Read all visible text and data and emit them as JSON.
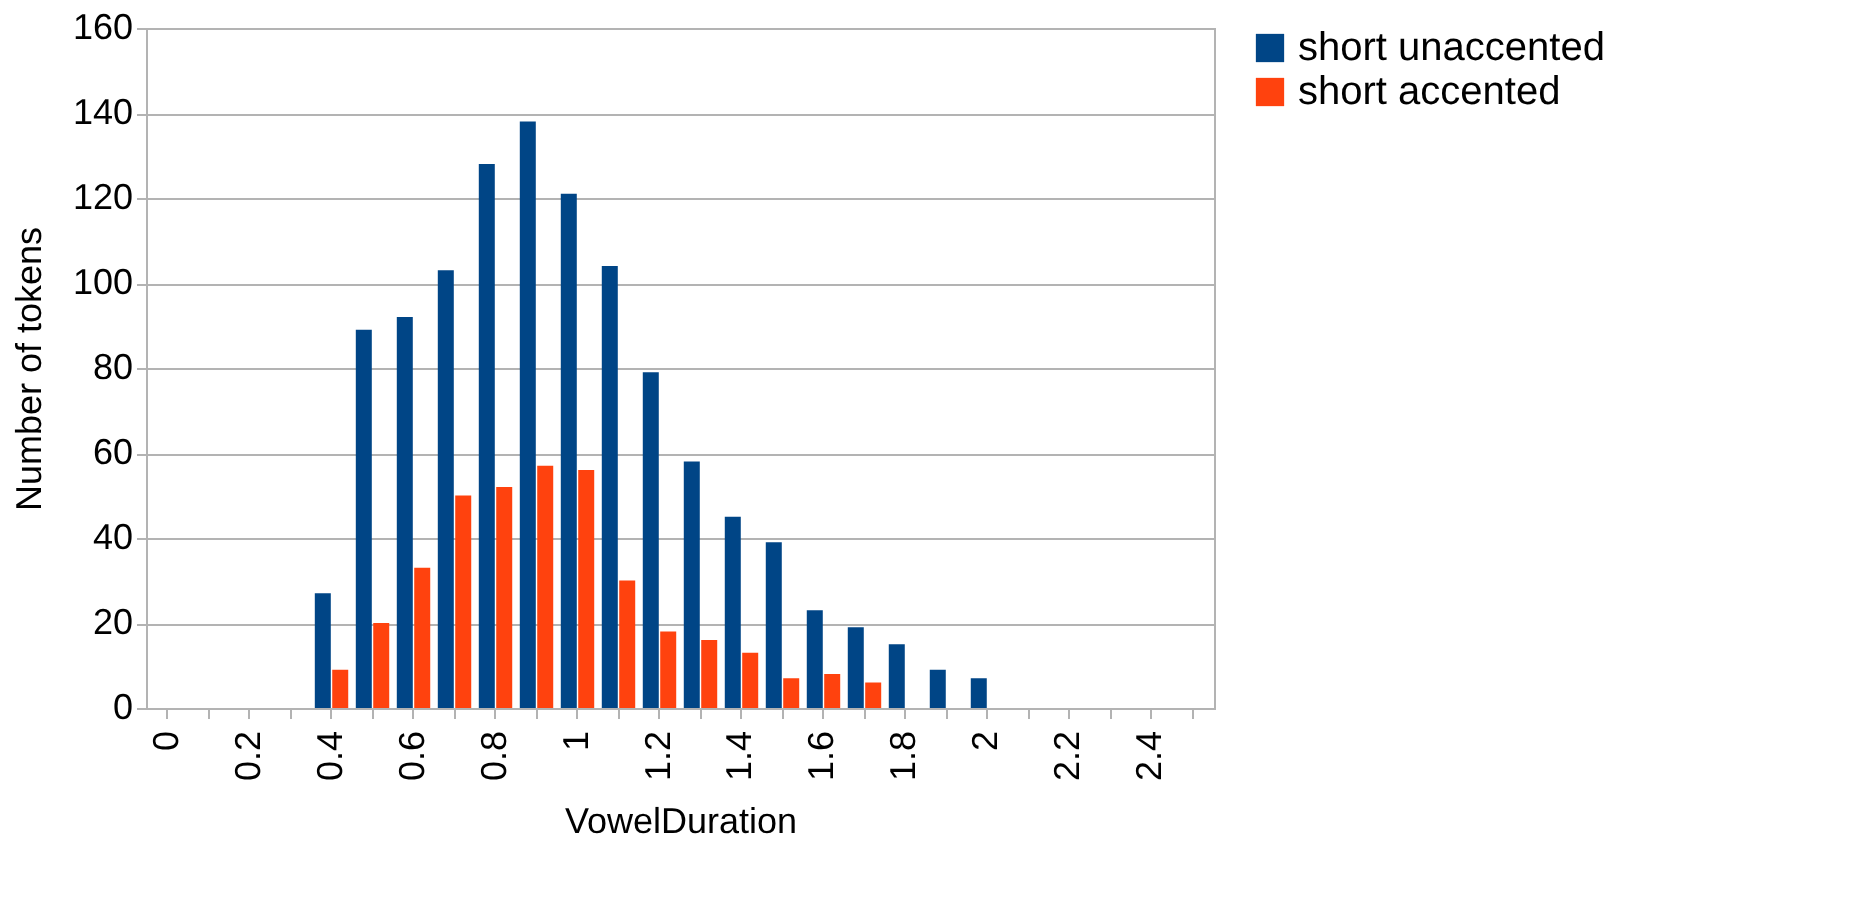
{
  "chart_data": {
    "type": "bar",
    "xlabel": "VowelDuration",
    "ylabel": "Number of tokens",
    "categories": [
      "0",
      null,
      "0.2",
      null,
      "0.4",
      null,
      "0.6",
      null,
      "0.8",
      null,
      "1",
      null,
      "1.2",
      null,
      "1.4",
      null,
      "1.6",
      null,
      "1.8",
      null,
      "2",
      null,
      "2.2",
      null,
      "2.4",
      null
    ],
    "series": [
      {
        "name": "short unaccented",
        "color": "#004586",
        "values": [
          0,
          0,
          0,
          0,
          27,
          89,
          92,
          103,
          128,
          138,
          121,
          104,
          79,
          58,
          45,
          39,
          23,
          19,
          15,
          9,
          7,
          0,
          0,
          0,
          0,
          0
        ]
      },
      {
        "name": "short accented",
        "color": "#ff420e",
        "values": [
          0,
          0,
          0,
          0,
          9,
          20,
          33,
          50,
          52,
          57,
          56,
          30,
          18,
          16,
          13,
          7,
          8,
          6,
          0,
          0,
          0,
          0,
          0,
          0,
          0,
          0
        ]
      }
    ],
    "ylim": [
      0,
      160
    ],
    "yticks": [
      0,
      20,
      40,
      60,
      80,
      100,
      120,
      140,
      160
    ],
    "grid": "y",
    "legend": "right"
  }
}
